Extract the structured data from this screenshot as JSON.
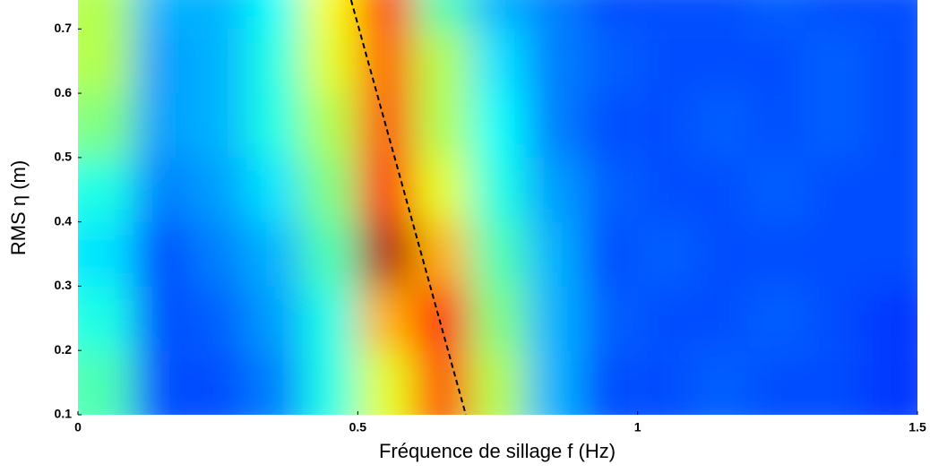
{
  "chart_data": {
    "type": "heatmap",
    "xlabel": "Fréquence de sillage f (Hz)",
    "ylabel": "RMS η (m)",
    "colormap": "jet",
    "xlim": [
      0,
      1.5
    ],
    "ylim": [
      0.1,
      0.745
    ],
    "xticks": [
      0,
      0.5,
      1,
      1.5
    ],
    "yticks": [
      0.1,
      0.2,
      0.3,
      0.4,
      0.5,
      0.6,
      0.7
    ],
    "x_bins": [
      0,
      0.1,
      0.2,
      0.3,
      0.4,
      0.5,
      0.6,
      0.7,
      0.8,
      0.9,
      1.0,
      1.1,
      1.2,
      1.3,
      1.4,
      1.5
    ],
    "y_bins": [
      0.1,
      0.2,
      0.3,
      0.4,
      0.5,
      0.6,
      0.7,
      0.745
    ],
    "z": [
      [
        0.45,
        0.2,
        0.2,
        0.25,
        0.4,
        0.6,
        0.8,
        0.55,
        0.3,
        0.2,
        0.2,
        0.22,
        0.2,
        0.2,
        0.18
      ],
      [
        0.4,
        0.2,
        0.22,
        0.28,
        0.4,
        0.7,
        0.85,
        0.5,
        0.3,
        0.22,
        0.2,
        0.2,
        0.22,
        0.2,
        0.18
      ],
      [
        0.35,
        0.2,
        0.25,
        0.3,
        0.45,
        0.95,
        0.7,
        0.45,
        0.3,
        0.2,
        0.22,
        0.2,
        0.2,
        0.2,
        0.2
      ],
      [
        0.4,
        0.25,
        0.28,
        0.35,
        0.5,
        0.85,
        0.6,
        0.4,
        0.28,
        0.22,
        0.2,
        0.2,
        0.22,
        0.2,
        0.2
      ],
      [
        0.5,
        0.28,
        0.3,
        0.4,
        0.55,
        0.8,
        0.55,
        0.38,
        0.25,
        0.2,
        0.2,
        0.22,
        0.2,
        0.22,
        0.2
      ],
      [
        0.55,
        0.28,
        0.3,
        0.4,
        0.6,
        0.78,
        0.55,
        0.35,
        0.25,
        0.22,
        0.2,
        0.2,
        0.2,
        0.22,
        0.2
      ],
      [
        0.55,
        0.3,
        0.3,
        0.38,
        0.62,
        0.82,
        0.45,
        0.3,
        0.25,
        0.2,
        0.2,
        0.2,
        0.22,
        0.2,
        0.2
      ]
    ],
    "reference_line": {
      "x": [
        0.488,
        0.693
      ],
      "y": [
        0.745,
        0.1
      ],
      "color": "#000000",
      "style": "dashed"
    }
  }
}
